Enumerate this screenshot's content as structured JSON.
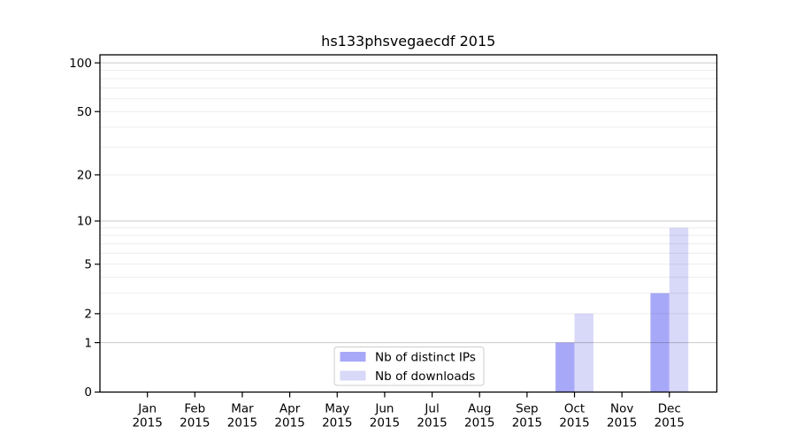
{
  "chart_data": {
    "type": "bar",
    "title": "hs133phsvegaecdf 2015",
    "categories": [
      "Jan",
      "Feb",
      "Mar",
      "Apr",
      "May",
      "Jun",
      "Jul",
      "Aug",
      "Sep",
      "Oct",
      "Nov",
      "Dec"
    ],
    "category_year": "2015",
    "series": [
      {
        "name": "Nb of distinct IPs",
        "color": "#a8a8f8",
        "values": [
          0,
          0,
          0,
          0,
          0,
          0,
          0,
          0,
          0,
          1,
          0,
          3
        ]
      },
      {
        "name": "Nb of downloads",
        "color": "#d8d8f8",
        "values": [
          0,
          0,
          0,
          0,
          0,
          0,
          0,
          0,
          0,
          2,
          0,
          9
        ]
      }
    ],
    "yscale": "log1p",
    "ylim": [
      0,
      110
    ],
    "y_tick_values": [
      0,
      1,
      2,
      5,
      10,
      20,
      50,
      100
    ],
    "y_tick_labels": [
      "0",
      "1",
      "2",
      "5",
      "10",
      "20",
      "50",
      "100"
    ],
    "minor_grid_values": [
      2,
      3,
      4,
      5,
      6,
      7,
      8,
      9,
      20,
      30,
      40,
      50,
      60,
      70,
      80,
      90
    ],
    "major_grid_values": [
      1,
      10,
      100
    ],
    "grid": true,
    "legend": {
      "position": "lower-center"
    },
    "colors": {
      "axis": "#000000",
      "major_grid": "#c9c9c9",
      "minor_grid": "#ededed",
      "legend_border": "#cccccc",
      "legend_background": "#ffffff"
    }
  }
}
